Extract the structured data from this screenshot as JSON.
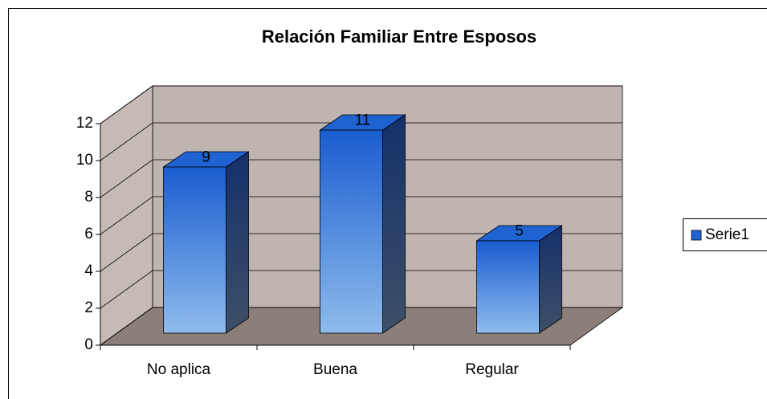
{
  "chart_data": {
    "type": "bar",
    "title": "Relación Familiar Entre Esposos",
    "categories": [
      "No aplica",
      "Buena",
      "Regular"
    ],
    "series": [
      {
        "name": "Serie1",
        "color": "#1f63d3",
        "values": [
          9,
          11,
          5
        ]
      }
    ],
    "ylim": [
      0,
      12
    ],
    "yticks": [
      0,
      2,
      4,
      6,
      8,
      10,
      12
    ],
    "grid": true,
    "legend": "right"
  }
}
